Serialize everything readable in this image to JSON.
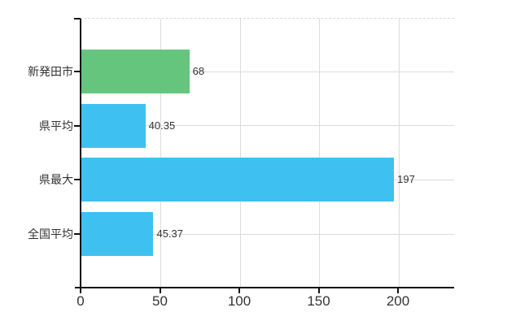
{
  "chart_data": {
    "type": "bar",
    "orientation": "horizontal",
    "title": "",
    "xlabel": "",
    "ylabel": "",
    "categories": [
      "新発田市",
      "県平均",
      "県最大",
      "全国平均"
    ],
    "values": [
      68,
      40.35,
      197,
      45.37
    ],
    "value_labels": [
      "68",
      "40.35",
      "197",
      "45.37"
    ],
    "bar_colors": [
      "#66C57C",
      "#3EC1F0",
      "#3EC1F0",
      "#3EC1F0"
    ],
    "x_ticks": [
      0,
      50,
      100,
      150,
      200
    ],
    "x_tick_labels": [
      "0",
      "50",
      "100",
      "150",
      "200"
    ],
    "xlim": [
      0,
      235
    ],
    "grid": true,
    "legend": false
  },
  "colors": {
    "bar_green": "#66C57C",
    "bar_blue": "#3EC1F0",
    "axis": "#111111",
    "grid": "#dcdcdc",
    "grid_dashed_border": "#d9d9d9",
    "text": "#333333",
    "background": "#ffffff"
  }
}
